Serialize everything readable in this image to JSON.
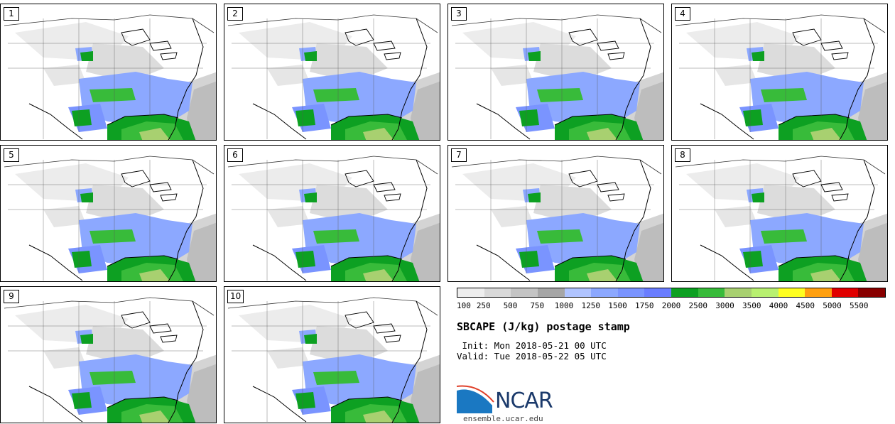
{
  "panels": [
    {
      "num": "1"
    },
    {
      "num": "2"
    },
    {
      "num": "3"
    },
    {
      "num": "4"
    },
    {
      "num": "5"
    },
    {
      "num": "6"
    },
    {
      "num": "7"
    },
    {
      "num": "8"
    },
    {
      "num": "9"
    },
    {
      "num": "10"
    }
  ],
  "colorbar": {
    "colors": [
      "#eeeeee",
      "#d9d9d9",
      "#c4c4c4",
      "#a6a6a6",
      "#b0c4ff",
      "#8ca8ff",
      "#7a94ff",
      "#6a7dff",
      "#0da022",
      "#38bb3a",
      "#a8d070",
      "#b8f070",
      "#ffff20",
      "#ffa010",
      "#e00000",
      "#880000"
    ],
    "labels": [
      "100",
      "250",
      "500",
      "750",
      "1000",
      "1250",
      "1500",
      "1750",
      "2000",
      "2500",
      "3000",
      "3500",
      "4000",
      "4500",
      "5000",
      "5500"
    ]
  },
  "title": "SBCAPE (J/kg) postage stamp",
  "init": " Init: Mon 2018-05-21 00 UTC",
  "valid": "Valid: Tue 2018-05-22 05 UTC",
  "logo": {
    "text": "NCAR",
    "url": "ensemble.ucar.edu",
    "color": "#1b3a6b"
  }
}
